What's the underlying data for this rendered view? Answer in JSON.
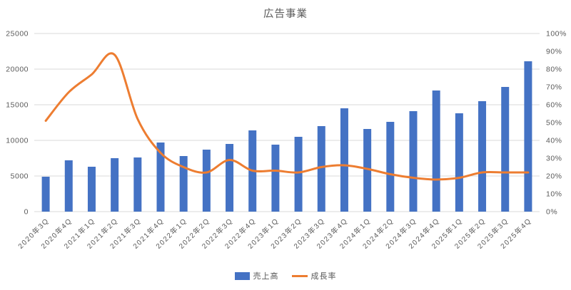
{
  "title": "広告事業",
  "chart_data": {
    "type": "bar+line combo",
    "title": "広告事業",
    "categories": [
      "2020年3Q",
      "2020年4Q",
      "2021年1Q",
      "2021年2Q",
      "2021年3Q",
      "2021年4Q",
      "2022年1Q",
      "2022年2Q",
      "2022年3Q",
      "2022年4Q",
      "2023年1Q",
      "2023年2Q",
      "2023年3Q",
      "2023年4Q",
      "2024年1Q",
      "2024年2Q",
      "2024年3Q",
      "2024年4Q",
      "2025年1Q",
      "2025年2Q",
      "2025年3Q",
      "2025年4Q"
    ],
    "series": [
      {
        "name": "売上高",
        "type": "bar",
        "axis": "left",
        "values": [
          4900,
          7200,
          6300,
          7500,
          7600,
          9700,
          7800,
          8700,
          9500,
          11400,
          9400,
          10500,
          12000,
          14500,
          11600,
          12600,
          14100,
          17000,
          13800,
          15500,
          17500,
          21100
        ]
      },
      {
        "name": "成長率",
        "type": "line",
        "axis": "right",
        "values_percent": [
          51,
          67,
          77,
          88,
          52,
          33,
          25,
          22,
          29,
          23,
          23,
          22,
          25,
          26,
          24,
          21,
          19,
          18,
          19,
          22,
          22,
          22
        ]
      }
    ],
    "left_axis": {
      "min": 0,
      "max": 25000,
      "step": 5000,
      "tick_labels": [
        "25000",
        "20000",
        "15000",
        "10000",
        "5000",
        "0"
      ]
    },
    "right_axis": {
      "min": 0,
      "max": 100,
      "step": 10,
      "tick_labels": [
        "100%",
        "90%",
        "80%",
        "70%",
        "60%",
        "50%",
        "40%",
        "30%",
        "20%",
        "10%",
        "0%"
      ]
    },
    "grid": "horizontal",
    "legend": {
      "position": "bottom",
      "items": [
        {
          "label": "売上高",
          "type": "bar"
        },
        {
          "label": "成長率",
          "type": "line"
        }
      ]
    },
    "colors": {
      "bar": "#4472C4",
      "line": "#ED7D31",
      "grid": "#D9D9D9",
      "text": "#595959",
      "title": "#595959"
    }
  }
}
